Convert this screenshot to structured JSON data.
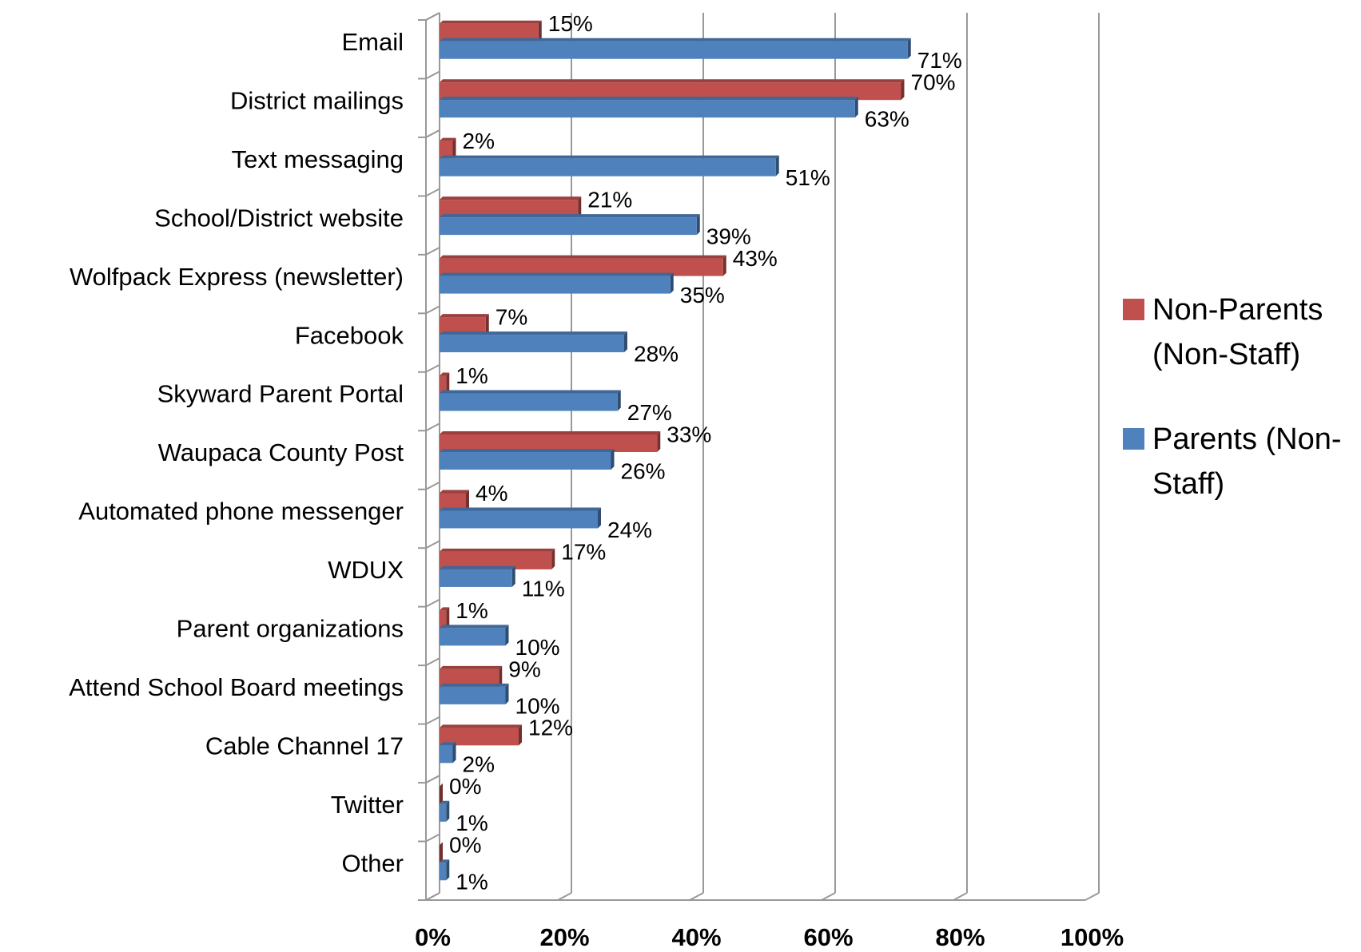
{
  "chart_data": {
    "type": "bar",
    "orientation": "horizontal",
    "categories": [
      "Email",
      "District mailings",
      "Text messaging",
      "School/District website",
      "Wolfpack Express (newsletter)",
      "Facebook",
      "Skyward Parent Portal",
      "Waupaca County Post",
      "Automated phone messenger",
      "WDUX",
      "Parent organizations",
      "Attend School Board meetings",
      "Cable Channel 17",
      "Twitter",
      "Other"
    ],
    "series": [
      {
        "name": "Non-Parents (Non-Staff)",
        "color": "#c0504d",
        "values": [
          15,
          70,
          2,
          21,
          43,
          7,
          1,
          33,
          4,
          17,
          1,
          9,
          12,
          0,
          0
        ],
        "value_labels": [
          "15%",
          "70%",
          "2%",
          "21%",
          "43%",
          "7%",
          "1%",
          "33%",
          "4%",
          "17%",
          "1%",
          "9%",
          "12%",
          "0%",
          "0%"
        ]
      },
      {
        "name": "Parents (Non-Staff)",
        "color": "#4f81bd",
        "values": [
          71,
          63,
          51,
          39,
          35,
          28,
          27,
          26,
          24,
          11,
          10,
          10,
          2,
          1,
          1
        ],
        "value_labels": [
          "71%",
          "63%",
          "51%",
          "39%",
          "35%",
          "28%",
          "27%",
          "26%",
          "24%",
          "11%",
          "10%",
          "10%",
          "2%",
          "1%",
          "1%"
        ]
      }
    ],
    "xlim": [
      0,
      100
    ],
    "xticks": [
      {
        "value": 0,
        "label": "0%"
      },
      {
        "value": 20,
        "label": "20%"
      },
      {
        "value": 40,
        "label": "40%"
      },
      {
        "value": 60,
        "label": "60%"
      },
      {
        "value": 80,
        "label": "80%"
      },
      {
        "value": 100,
        "label": "100%"
      }
    ],
    "grid": true,
    "legend": "right"
  }
}
